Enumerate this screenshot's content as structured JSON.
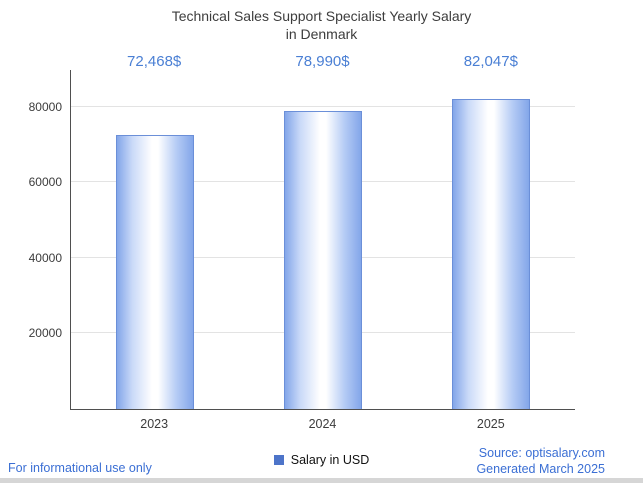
{
  "title": {
    "line1": "Technical Sales Support Specialist Yearly Salary",
    "line2": "in Denmark"
  },
  "chart_data": {
    "type": "bar",
    "title": "Technical Sales Support Specialist Yearly Salary in Denmark",
    "categories": [
      "2023",
      "2024",
      "2025"
    ],
    "values": [
      72468,
      78990,
      82047
    ],
    "value_labels": [
      "72,468$",
      "78,990$",
      "82,047$"
    ],
    "series_name": "Salary in USD",
    "xlabel": "",
    "ylabel": "",
    "ylim": [
      0,
      90000
    ],
    "yticks": [
      20000,
      40000,
      60000,
      80000
    ],
    "grid": true,
    "legend_position": "bottom"
  },
  "legend": {
    "label": "Salary in USD"
  },
  "footer": {
    "left": "For informational use only",
    "source": "Source: optisalary.com",
    "generated": "Generated March 2025"
  },
  "colors": {
    "accent": "#4a7fd4",
    "link": "#3b6fd4",
    "title_color": "#3d3d3d",
    "legend_swatch": "#4d74c9",
    "bar_edge": "#6b8fd8",
    "bar_fill": "#83a6e9",
    "gridline": "#e3e3e3"
  }
}
